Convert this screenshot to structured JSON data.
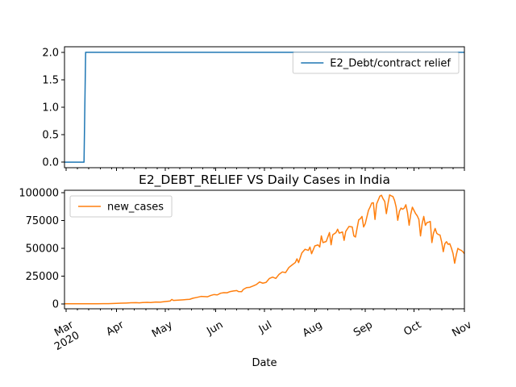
{
  "chart_data": [
    {
      "type": "line",
      "title": "",
      "xlabel": "",
      "ylabel": "",
      "x_start": "2020-02-29",
      "x_end": "2020-11-01",
      "ylim": [
        -0.1,
        2.1
      ],
      "yticks": [
        "0.0",
        "0.5",
        "1.0",
        "1.5",
        "2.0"
      ],
      "legend_loc": "upper right",
      "grid": false,
      "series": [
        {
          "name": "E2_Debt/contract relief",
          "color": "#1f77b4",
          "points": [
            [
              "2020-02-29",
              0
            ],
            [
              "2020-03-12",
              0
            ],
            [
              "2020-03-13",
              2
            ],
            [
              "2020-11-01",
              2
            ]
          ]
        }
      ]
    },
    {
      "type": "line",
      "title": "E2_DEBT_RELIEF VS Daily Cases in India",
      "xlabel": "Date",
      "ylabel": "",
      "x_start": "2020-02-29",
      "x_end": "2020-11-01",
      "ylim": [
        -4500,
        102000
      ],
      "yticks": [
        "0",
        "25000",
        "50000",
        "75000",
        "100000"
      ],
      "xticklabels": [
        "Mar\n2020",
        "Apr",
        "May",
        "Jun",
        "Jul",
        "Aug",
        "Sep",
        "Oct",
        "Nov"
      ],
      "xtick_dates": [
        "2020-03-01",
        "2020-04-01",
        "2020-05-01",
        "2020-06-01",
        "2020-07-01",
        "2020-08-01",
        "2020-09-01",
        "2020-10-01",
        "2020-11-01"
      ],
      "legend_loc": "upper left",
      "grid": false,
      "series": [
        {
          "name": "new_cases",
          "color": "#ff7f0e",
          "points": [
            [
              "2020-02-29",
              0
            ],
            [
              "2020-03-10",
              10
            ],
            [
              "2020-03-20",
              60
            ],
            [
              "2020-03-27",
              150
            ],
            [
              "2020-04-01",
              400
            ],
            [
              "2020-04-04",
              600
            ],
            [
              "2020-04-07",
              700
            ],
            [
              "2020-04-10",
              900
            ],
            [
              "2020-04-13",
              1000
            ],
            [
              "2020-04-15",
              800
            ],
            [
              "2020-04-17",
              1100
            ],
            [
              "2020-04-20",
              1300
            ],
            [
              "2020-04-22",
              1100
            ],
            [
              "2020-04-25",
              1600
            ],
            [
              "2020-04-28",
              1500
            ],
            [
              "2020-05-01",
              2000
            ],
            [
              "2020-05-04",
              2500
            ],
            [
              "2020-05-05",
              3900
            ],
            [
              "2020-05-06",
              3000
            ],
            [
              "2020-05-09",
              3300
            ],
            [
              "2020-05-12",
              3600
            ],
            [
              "2020-05-14",
              3800
            ],
            [
              "2020-05-16",
              4000
            ],
            [
              "2020-05-18",
              5000
            ],
            [
              "2020-05-20",
              5600
            ],
            [
              "2020-05-23",
              6600
            ],
            [
              "2020-05-25",
              6500
            ],
            [
              "2020-05-27",
              6300
            ],
            [
              "2020-05-29",
              7500
            ],
            [
              "2020-05-31",
              8300
            ],
            [
              "2020-06-02",
              8000
            ],
            [
              "2020-06-04",
              9500
            ],
            [
              "2020-06-06",
              10000
            ],
            [
              "2020-06-08",
              9900
            ],
            [
              "2020-06-10",
              11000
            ],
            [
              "2020-06-12",
              11500
            ],
            [
              "2020-06-14",
              11900
            ],
            [
              "2020-06-15",
              11000
            ],
            [
              "2020-06-17",
              10900
            ],
            [
              "2020-06-18",
              12900
            ],
            [
              "2020-06-20",
              14500
            ],
            [
              "2020-06-22",
              14800
            ],
            [
              "2020-06-24",
              16000
            ],
            [
              "2020-06-26",
              17300
            ],
            [
              "2020-06-28",
              19600
            ],
            [
              "2020-06-30",
              18500
            ],
            [
              "2020-07-02",
              19200
            ],
            [
              "2020-07-04",
              22700
            ],
            [
              "2020-07-06",
              24000
            ],
            [
              "2020-07-08",
              22800
            ],
            [
              "2020-07-10",
              26500
            ],
            [
              "2020-07-12",
              28600
            ],
            [
              "2020-07-14",
              28000
            ],
            [
              "2020-07-16",
              32600
            ],
            [
              "2020-07-18",
              34900
            ],
            [
              "2020-07-20",
              37100
            ],
            [
              "2020-07-21",
              40400
            ],
            [
              "2020-07-22",
              37000
            ],
            [
              "2020-07-24",
              45700
            ],
            [
              "2020-07-26",
              49000
            ],
            [
              "2020-07-28",
              48000
            ],
            [
              "2020-07-29",
              51000
            ],
            [
              "2020-07-30",
              45000
            ],
            [
              "2020-08-01",
              52000
            ],
            [
              "2020-08-03",
              52900
            ],
            [
              "2020-08-04",
              51000
            ],
            [
              "2020-08-05",
              61000
            ],
            [
              "2020-08-06",
              55000
            ],
            [
              "2020-08-08",
              56000
            ],
            [
              "2020-08-09",
              60000
            ],
            [
              "2020-08-10",
              64000
            ],
            [
              "2020-08-11",
              53000
            ],
            [
              "2020-08-12",
              62000
            ],
            [
              "2020-08-14",
              64000
            ],
            [
              "2020-08-15",
              67000
            ],
            [
              "2020-08-16",
              63500
            ],
            [
              "2020-08-18",
              64500
            ],
            [
              "2020-08-19",
              57000
            ],
            [
              "2020-08-20",
              65000
            ],
            [
              "2020-08-22",
              69500
            ],
            [
              "2020-08-24",
              69000
            ],
            [
              "2020-08-25",
              61000
            ],
            [
              "2020-08-26",
              60000
            ],
            [
              "2020-08-27",
              68000
            ],
            [
              "2020-08-28",
              75500
            ],
            [
              "2020-08-29",
              76500
            ],
            [
              "2020-08-30",
              78500
            ],
            [
              "2020-08-31",
              69000
            ],
            [
              "2020-09-01",
              72000
            ],
            [
              "2020-09-02",
              78000
            ],
            [
              "2020-09-03",
              84000
            ],
            [
              "2020-09-04",
              87000
            ],
            [
              "2020-09-05",
              90500
            ],
            [
              "2020-09-06",
              90800
            ],
            [
              "2020-09-07",
              75800
            ],
            [
              "2020-09-08",
              89700
            ],
            [
              "2020-09-10",
              96700
            ],
            [
              "2020-09-11",
              97500
            ],
            [
              "2020-09-12",
              94300
            ],
            [
              "2020-09-13",
              92000
            ],
            [
              "2020-09-14",
              81000
            ],
            [
              "2020-09-15",
              90000
            ],
            [
              "2020-09-16",
              97800
            ],
            [
              "2020-09-17",
              97000
            ],
            [
              "2020-09-18",
              96400
            ],
            [
              "2020-09-19",
              93000
            ],
            [
              "2020-09-20",
              87000
            ],
            [
              "2020-09-21",
              75000
            ],
            [
              "2020-09-22",
              83000
            ],
            [
              "2020-09-23",
              86000
            ],
            [
              "2020-09-24",
              85000
            ],
            [
              "2020-09-25",
              86000
            ],
            [
              "2020-09-26",
              89000
            ],
            [
              "2020-09-27",
              82000
            ],
            [
              "2020-09-28",
              70600
            ],
            [
              "2020-09-29",
              80500
            ],
            [
              "2020-09-30",
              86800
            ],
            [
              "2020-10-02",
              81000
            ],
            [
              "2020-10-03",
              79000
            ],
            [
              "2020-10-04",
              75800
            ],
            [
              "2020-10-05",
              61000
            ],
            [
              "2020-10-06",
              72000
            ],
            [
              "2020-10-07",
              78500
            ],
            [
              "2020-10-08",
              70500
            ],
            [
              "2020-10-09",
              73000
            ],
            [
              "2020-10-10",
              73300
            ],
            [
              "2020-10-11",
              74000
            ],
            [
              "2020-10-12",
              55000
            ],
            [
              "2020-10-13",
              63500
            ],
            [
              "2020-10-14",
              67700
            ],
            [
              "2020-10-15",
              63300
            ],
            [
              "2020-10-16",
              62200
            ],
            [
              "2020-10-17",
              61800
            ],
            [
              "2020-10-18",
              55700
            ],
            [
              "2020-10-19",
              46800
            ],
            [
              "2020-10-20",
              54000
            ],
            [
              "2020-10-21",
              55800
            ],
            [
              "2020-10-22",
              53400
            ],
            [
              "2020-10-23",
              54000
            ],
            [
              "2020-10-24",
              50100
            ],
            [
              "2020-10-25",
              45200
            ],
            [
              "2020-10-26",
              36400
            ],
            [
              "2020-10-27",
              43900
            ],
            [
              "2020-10-28",
              49800
            ],
            [
              "2020-10-29",
              48600
            ],
            [
              "2020-10-30",
              48100
            ],
            [
              "2020-10-31",
              46900
            ],
            [
              "2020-11-01",
              45000
            ]
          ]
        }
      ]
    }
  ]
}
